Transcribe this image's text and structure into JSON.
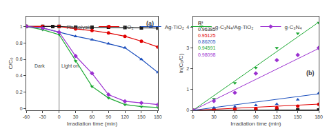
{
  "chart_data": [
    {
      "type": "line",
      "title": "(a)",
      "xlabel": "Irradiation time (min)",
      "ylabel": "C/C₀",
      "x": [
        -60,
        -30,
        0,
        30,
        60,
        90,
        120,
        150,
        180
      ],
      "series": [
        {
          "name": "Photolysis",
          "color": "#1a1a1a",
          "marker": "square",
          "values": [
            1.0,
            1.0,
            1.0,
            0.99,
            0.99,
            0.99,
            0.985,
            0.982,
            0.98
          ]
        },
        {
          "name": "TiO₂",
          "color": "#e00000",
          "marker": "circle",
          "values": [
            1.0,
            1.0,
            1.0,
            0.97,
            0.95,
            0.92,
            0.88,
            0.82,
            0.75
          ]
        },
        {
          "name": "Ag-TiO₂",
          "color": "#1c4fbd",
          "marker": "triangle-up",
          "values": [
            1.0,
            0.98,
            0.93,
            0.88,
            0.84,
            0.79,
            0.74,
            0.6,
            0.44
          ]
        },
        {
          "name": "g-C₃N₄/Ag-TiO₂",
          "color": "#1ca832",
          "marker": "triangle-down",
          "values": [
            1.0,
            0.96,
            0.9,
            0.58,
            0.27,
            0.13,
            0.05,
            0.025,
            0.015
          ]
        },
        {
          "name": "g-C₃N₄",
          "color": "#9b30d0",
          "marker": "diamond",
          "values": [
            1.0,
            0.98,
            0.93,
            0.64,
            0.43,
            0.17,
            0.09,
            0.07,
            0.05
          ]
        }
      ],
      "vlines": [
        {
          "x": 0,
          "color": "gray"
        }
      ],
      "annotations": [
        {
          "text": "Dark",
          "x": -35,
          "y": 0.52
        },
        {
          "text": "Light on",
          "x": 20,
          "y": 0.52
        }
      ],
      "xlim": [
        -60,
        180
      ],
      "xticks": [
        -60,
        -30,
        0,
        30,
        60,
        90,
        120,
        150,
        180
      ],
      "ylim": [
        -0.02,
        1.12
      ],
      "yticks": [
        0,
        0.2,
        0.4,
        0.6,
        0.8,
        1
      ],
      "grid": false,
      "legend": "top"
    },
    {
      "type": "scatter",
      "title": "(b)",
      "xlabel": "Irradiation time (min)",
      "ylabel": "ln(C₀/C)",
      "r2_label": "R²",
      "x": [
        0,
        30,
        60,
        90,
        120,
        150,
        180
      ],
      "series": [
        {
          "name": "Photolysis",
          "color": "#1a1a1a",
          "marker": "square",
          "r2": "0.96385",
          "values": [
            0.0,
            0.01,
            0.01,
            0.01,
            0.015,
            0.018,
            0.02
          ],
          "fit": {
            "x": [
              0,
              180
            ],
            "values": [
              0,
              0.0198
            ]
          }
        },
        {
          "name": "TiO₂",
          "color": "#e00000",
          "marker": "circle",
          "r2": "0.95125",
          "values": [
            0.0,
            0.03,
            0.05,
            0.083,
            0.128,
            0.198,
            0.288
          ],
          "fit": {
            "x": [
              0,
              180
            ],
            "values": [
              0,
              0.297
            ]
          }
        },
        {
          "name": "Ag-TiO₂",
          "color": "#1c4fbd",
          "marker": "triangle-up",
          "r2": "0.86205",
          "values": [
            0.0,
            0.128,
            0.174,
            0.236,
            0.301,
            0.511,
            0.821
          ],
          "fit": {
            "x": [
              0,
              180
            ],
            "values": [
              0,
              0.792
            ]
          }
        },
        {
          "name": "g-C₃N₄/Ag-TiO₂",
          "color": "#1ca832",
          "marker": "triangle-down",
          "r2": "0.94591",
          "values": [
            0.0,
            0.544,
            1.309,
            2.04,
            2.996,
            3.689,
            4.2
          ],
          "fit": {
            "x": [
              0,
              180
            ],
            "values": [
              0,
              4.23
            ]
          }
        },
        {
          "name": "g-C₃N₄",
          "color": "#9b30d0",
          "marker": "diamond",
          "r2": "0.98098",
          "values": [
            0.0,
            0.446,
            0.844,
            1.772,
            2.408,
            2.659,
            2.996
          ],
          "fit": {
            "x": [
              0,
              180
            ],
            "values": [
              0,
              2.97
            ]
          }
        }
      ],
      "xlim": [
        0,
        180
      ],
      "xticks": [
        0,
        30,
        60,
        90,
        120,
        150,
        180
      ],
      "ylim": [
        0,
        4.5
      ],
      "yticks": [
        0,
        1,
        2,
        3,
        4
      ],
      "grid": false
    }
  ]
}
